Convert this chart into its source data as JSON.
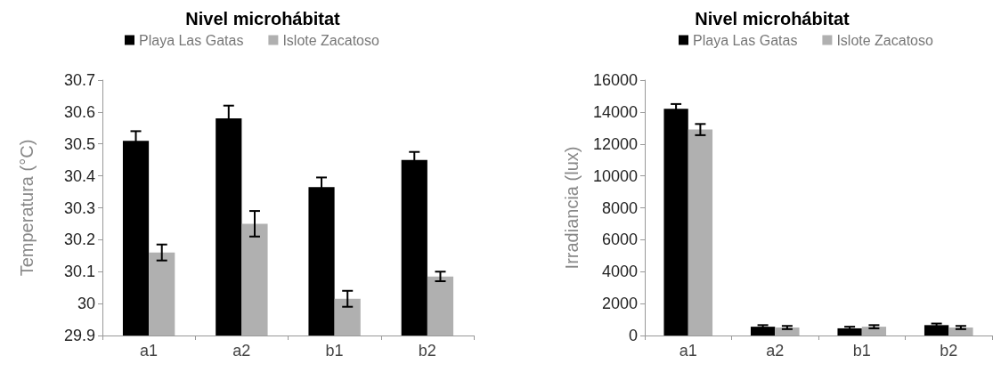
{
  "chart_data": [
    {
      "type": "bar",
      "title": "Nivel microhábitat",
      "ylabel": "Temperatura (°C)",
      "categories": [
        "a1",
        "a2",
        "b1",
        "b2"
      ],
      "series": [
        {
          "name": "Playa Las Gatas",
          "color": "#000000",
          "values": [
            30.51,
            30.58,
            30.365,
            30.45
          ],
          "errors": [
            0.03,
            0.04,
            0.03,
            0.025
          ]
        },
        {
          "name": "Islote Zacatoso",
          "color": "#b0b0b0",
          "values": [
            30.16,
            30.25,
            30.015,
            30.085
          ],
          "errors": [
            0.025,
            0.04,
            0.025,
            0.015
          ]
        }
      ],
      "ylim": [
        29.9,
        30.7
      ],
      "yticks": [
        29.9,
        30,
        30.1,
        30.2,
        30.3,
        30.4,
        30.5,
        30.6,
        30.7
      ],
      "grid": false,
      "legend": "top"
    },
    {
      "type": "bar",
      "title": "Nivel microhábitat",
      "ylabel": "Irradiancia (lux)",
      "categories": [
        "a1",
        "a2",
        "b1",
        "b2"
      ],
      "series": [
        {
          "name": "Playa Las Gatas",
          "color": "#000000",
          "values": [
            14200,
            550,
            450,
            650
          ],
          "errors": [
            300,
            100,
            100,
            100
          ]
        },
        {
          "name": "Islote Zacatoso",
          "color": "#b0b0b0",
          "values": [
            12900,
            500,
            550,
            500
          ],
          "errors": [
            350,
            100,
            100,
            100
          ]
        }
      ],
      "ylim": [
        0,
        16000
      ],
      "yticks": [
        0,
        2000,
        4000,
        6000,
        8000,
        10000,
        12000,
        14000,
        16000
      ],
      "grid": false,
      "legend": "top"
    }
  ]
}
